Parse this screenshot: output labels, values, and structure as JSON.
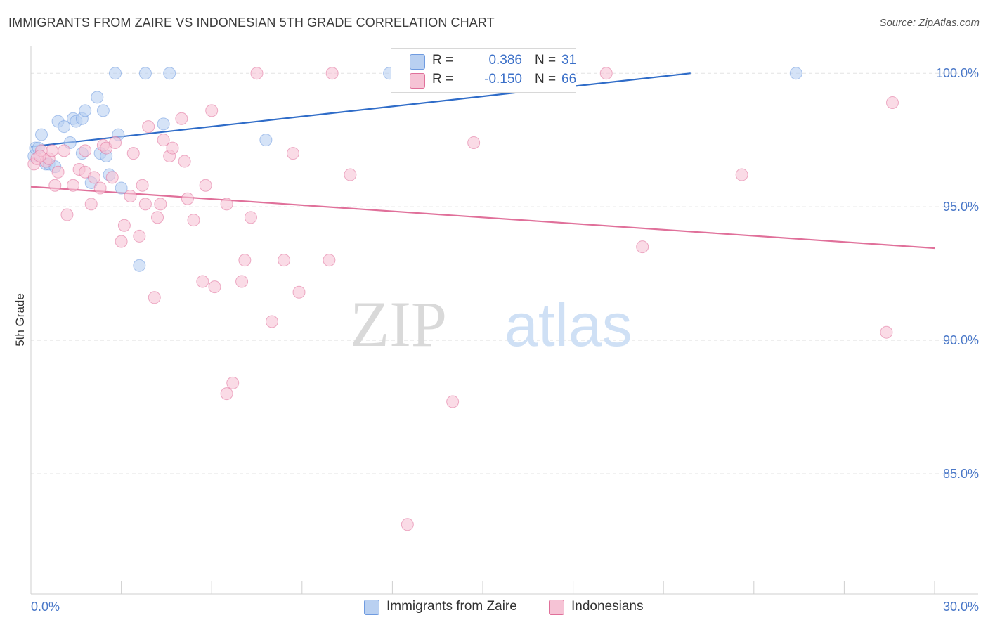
{
  "header": {
    "title": "IMMIGRANTS FROM ZAIRE VS INDONESIAN 5TH GRADE CORRELATION CHART",
    "source": "Source: ZipAtlas.com"
  },
  "watermark": {
    "part1": "ZIP",
    "part2": "atlas"
  },
  "legend": {
    "rows": [
      {
        "r_label": "R =",
        "r_value": "0.386",
        "n_label": "N =",
        "n_value": "31",
        "color": "#6f9be0",
        "fill": "#b9d0f1"
      },
      {
        "r_label": "R =",
        "r_value": "-0.150",
        "n_label": "N =",
        "n_value": "66",
        "color": "#e0709a",
        "fill": "#f6c3d5"
      }
    ]
  },
  "bottom_legend": [
    {
      "label": "Immigrants from Zaire",
      "fill": "#b9d0f1",
      "color": "#6f9be0"
    },
    {
      "label": "Indonesians",
      "fill": "#f6c3d5",
      "color": "#e0709a"
    }
  ],
  "chart_data": {
    "type": "scatter",
    "title": "IMMIGRANTS FROM ZAIRE VS INDONESIAN 5TH GRADE CORRELATION CHART",
    "xlabel": "",
    "ylabel": "5th Grade",
    "xlim": [
      0,
      30
    ],
    "ylim": [
      80.5,
      100.9
    ],
    "x_tick_labels": [
      {
        "value": 0,
        "label": "0.0%"
      },
      {
        "value": 30,
        "label": "30.0%"
      }
    ],
    "y_tick_labels": [
      {
        "value": 100,
        "label": "100.0%"
      },
      {
        "value": 95,
        "label": "95.0%"
      },
      {
        "value": 90,
        "label": "90.0%"
      },
      {
        "value": 85,
        "label": "85.0%"
      }
    ],
    "grid": true,
    "legend_position": "top-center",
    "series": [
      {
        "name": "Immigrants from Zaire",
        "color": "#6f9be0",
        "fill": "#b9d0f1",
        "trend": {
          "x": [
            0,
            21.9
          ],
          "y": [
            97.25,
            100.0
          ]
        },
        "points": [
          [
            0.1,
            96.9
          ],
          [
            0.15,
            97.2
          ],
          [
            0.25,
            97.2
          ],
          [
            0.35,
            97.7
          ],
          [
            0.5,
            96.6
          ],
          [
            0.6,
            96.6
          ],
          [
            0.8,
            96.5
          ],
          [
            0.9,
            98.2
          ],
          [
            1.1,
            98.0
          ],
          [
            1.3,
            97.4
          ],
          [
            1.4,
            98.3
          ],
          [
            1.5,
            98.2
          ],
          [
            1.7,
            98.3
          ],
          [
            1.7,
            97.0
          ],
          [
            1.8,
            98.6
          ],
          [
            2.0,
            95.9
          ],
          [
            2.2,
            99.1
          ],
          [
            2.3,
            97.0
          ],
          [
            2.4,
            98.6
          ],
          [
            2.5,
            96.9
          ],
          [
            2.6,
            96.2
          ],
          [
            2.9,
            97.7
          ],
          [
            3.0,
            95.7
          ],
          [
            2.8,
            100.0
          ],
          [
            3.6,
            92.8
          ],
          [
            3.8,
            100.0
          ],
          [
            4.4,
            98.1
          ],
          [
            4.6,
            100.0
          ],
          [
            7.8,
            97.5
          ],
          [
            11.9,
            100.0
          ],
          [
            25.4,
            100.0
          ]
        ]
      },
      {
        "name": "Indonesians",
        "color": "#e0709a",
        "fill": "#f6c3d5",
        "trend": {
          "x": [
            0,
            30
          ],
          "y": [
            95.75,
            93.45
          ]
        },
        "points": [
          [
            0.1,
            96.6
          ],
          [
            0.2,
            96.8
          ],
          [
            0.35,
            97.1
          ],
          [
            0.5,
            96.7
          ],
          [
            0.6,
            96.8
          ],
          [
            0.7,
            97.1
          ],
          [
            0.8,
            95.8
          ],
          [
            0.9,
            96.3
          ],
          [
            1.1,
            97.1
          ],
          [
            1.2,
            94.7
          ],
          [
            1.4,
            95.8
          ],
          [
            1.6,
            96.4
          ],
          [
            1.8,
            97.1
          ],
          [
            1.8,
            96.3
          ],
          [
            2.0,
            95.1
          ],
          [
            2.1,
            96.1
          ],
          [
            2.3,
            95.7
          ],
          [
            2.4,
            97.3
          ],
          [
            2.5,
            97.2
          ],
          [
            2.7,
            96.1
          ],
          [
            2.8,
            97.4
          ],
          [
            3.0,
            93.7
          ],
          [
            3.1,
            94.3
          ],
          [
            3.3,
            95.4
          ],
          [
            3.4,
            97.0
          ],
          [
            3.6,
            93.9
          ],
          [
            3.7,
            95.8
          ],
          [
            3.8,
            95.1
          ],
          [
            3.9,
            98.0
          ],
          [
            4.1,
            91.6
          ],
          [
            4.2,
            94.6
          ],
          [
            4.3,
            95.1
          ],
          [
            4.4,
            97.5
          ],
          [
            4.6,
            96.9
          ],
          [
            4.7,
            97.2
          ],
          [
            5.0,
            98.3
          ],
          [
            5.1,
            96.7
          ],
          [
            5.2,
            95.3
          ],
          [
            5.4,
            94.5
          ],
          [
            5.7,
            92.2
          ],
          [
            5.8,
            95.8
          ],
          [
            6.0,
            98.6
          ],
          [
            6.1,
            92.0
          ],
          [
            6.5,
            88.0
          ],
          [
            6.5,
            95.1
          ],
          [
            6.7,
            88.4
          ],
          [
            7.0,
            92.2
          ],
          [
            7.1,
            93.0
          ],
          [
            7.3,
            94.6
          ],
          [
            7.5,
            100.0
          ],
          [
            8.0,
            90.7
          ],
          [
            8.4,
            93.0
          ],
          [
            8.7,
            97.0
          ],
          [
            8.9,
            91.8
          ],
          [
            9.9,
            93.0
          ],
          [
            10.0,
            100.0
          ],
          [
            10.6,
            96.2
          ],
          [
            12.5,
            83.1
          ],
          [
            14.0,
            87.7
          ],
          [
            14.7,
            97.4
          ],
          [
            19.1,
            100.0
          ],
          [
            20.3,
            93.5
          ],
          [
            23.6,
            96.2
          ],
          [
            28.4,
            90.3
          ],
          [
            28.6,
            98.9
          ],
          [
            0.3,
            96.9
          ]
        ]
      }
    ]
  }
}
